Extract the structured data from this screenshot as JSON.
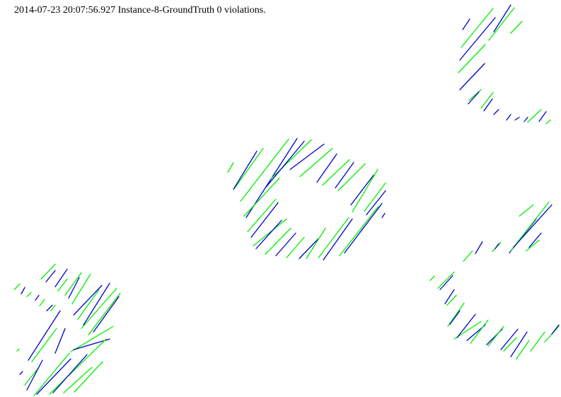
{
  "status": {
    "text": "2014-07-23 20:07:56.927 Instance-8-GroundTruth 0 violations."
  },
  "colors": {
    "green": "#00ee00",
    "blue": "#0000cc",
    "background": "#ffffff",
    "text": "#000000"
  }
}
